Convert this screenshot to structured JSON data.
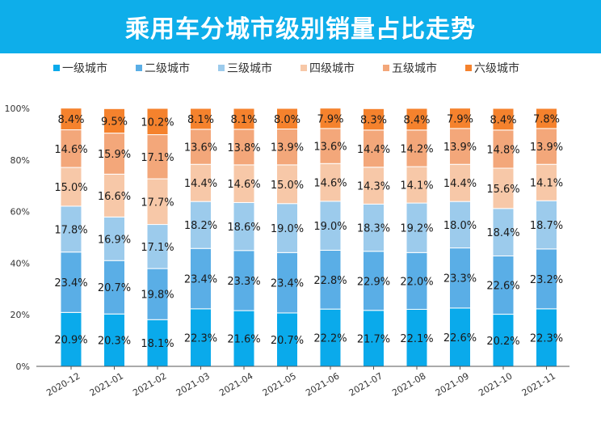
{
  "title": "乘用车分城市级别销量占比走势",
  "colors": {
    "title_bg": "#0eaeea"
  },
  "chart_data": {
    "type": "bar",
    "stacked": true,
    "title": "乘用车分城市级别销量占比走势",
    "xlabel": "",
    "ylabel": "",
    "ylim": [
      0,
      100
    ],
    "yticks": [
      "0%",
      "20%",
      "40%",
      "60%",
      "80%",
      "100%"
    ],
    "ytick_values": [
      0,
      20,
      40,
      60,
      80,
      100
    ],
    "legend_position": "top",
    "grid": false,
    "categories": [
      "2020-12",
      "2021-01",
      "2021-02",
      "2021-03",
      "2021-04",
      "2021-05",
      "2021-06",
      "2021-07",
      "2021-08",
      "2021-09",
      "2021-10",
      "2021-11"
    ],
    "series": [
      {
        "name": "一级城市",
        "color": "#0aaaeb",
        "values": [
          20.9,
          20.3,
          18.1,
          22.3,
          21.6,
          20.7,
          22.2,
          21.7,
          22.1,
          22.6,
          20.2,
          22.3
        ]
      },
      {
        "name": "二级城市",
        "color": "#5aaee6",
        "values": [
          23.4,
          20.7,
          19.8,
          23.4,
          23.3,
          23.4,
          22.8,
          22.9,
          22.0,
          23.3,
          22.6,
          23.2
        ]
      },
      {
        "name": "三级城市",
        "color": "#9ccbec",
        "values": [
          17.8,
          16.9,
          17.1,
          18.2,
          18.6,
          19.0,
          19.0,
          18.3,
          19.2,
          18.0,
          18.4,
          18.7
        ]
      },
      {
        "name": "四级城市",
        "color": "#f7c8a8",
        "values": [
          15.0,
          16.6,
          17.7,
          14.4,
          14.6,
          15.0,
          14.6,
          14.3,
          14.1,
          14.4,
          15.6,
          14.1
        ]
      },
      {
        "name": "五级城市",
        "color": "#f3a77a",
        "values": [
          14.6,
          15.9,
          17.1,
          13.6,
          13.8,
          13.9,
          13.6,
          14.4,
          14.2,
          13.9,
          14.8,
          13.9
        ]
      },
      {
        "name": "六级城市",
        "color": "#f5822d",
        "values": [
          8.4,
          9.5,
          10.2,
          8.1,
          8.1,
          8.0,
          7.9,
          8.3,
          8.4,
          7.9,
          8.4,
          7.8
        ]
      }
    ]
  }
}
